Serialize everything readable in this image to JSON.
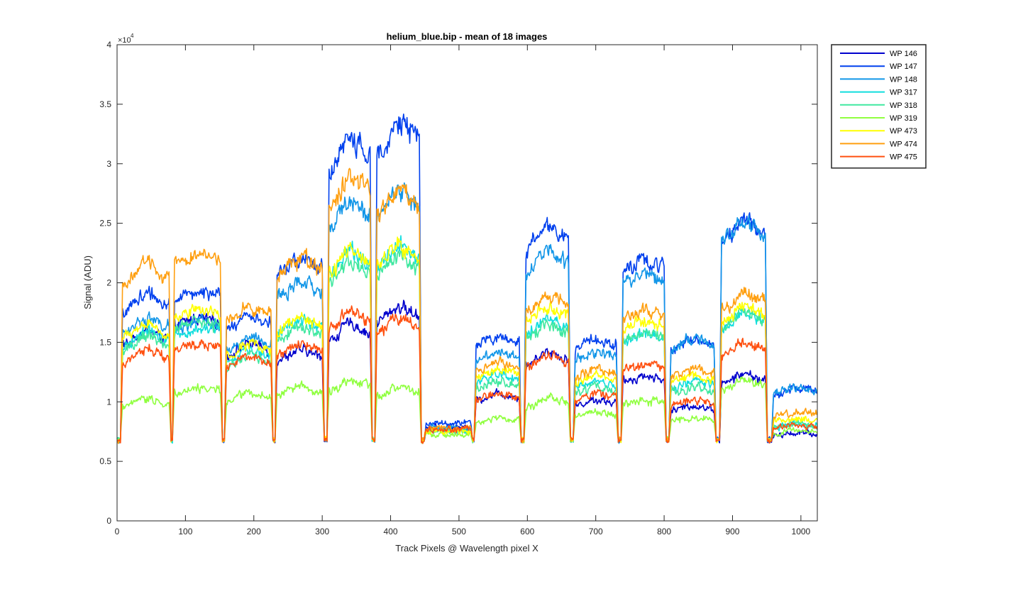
{
  "chart_data": {
    "type": "line",
    "title": "helium_blue.bip - mean of 18 images",
    "xlabel": "Track Pixels @ Wavelength pixel X",
    "ylabel": "Signal (ADU)",
    "y_exponent_label": "×10",
    "y_exponent_power": "4",
    "xlim": [
      0,
      1024
    ],
    "ylim": [
      0,
      40000
    ],
    "x_ticks": [
      0,
      100,
      200,
      300,
      400,
      500,
      600,
      700,
      800,
      900,
      1000
    ],
    "x_tick_labels": [
      "0",
      "100",
      "200",
      "300",
      "400",
      "500",
      "600",
      "700",
      "800",
      "900",
      "1000"
    ],
    "y_ticks": [
      0,
      5000,
      10000,
      15000,
      20000,
      25000,
      30000,
      35000,
      40000
    ],
    "y_tick_labels": [
      "0",
      "0.5",
      "1",
      "1.5",
      "2",
      "2.5",
      "3",
      "3.5",
      "4"
    ],
    "grid": false,
    "legend_position": "outside-right-top",
    "baseline": 6800,
    "segments": [
      {
        "start": 8,
        "end": 76,
        "shape": 0.35
      },
      {
        "start": 84,
        "end": 151,
        "shape": 0.15
      },
      {
        "start": 160,
        "end": 225,
        "shape": 0.3
      },
      {
        "start": 234,
        "end": 300,
        "shape": 0.25
      },
      {
        "start": 310,
        "end": 370,
        "shape": 0.4
      },
      {
        "start": 380,
        "end": 442,
        "shape": 0.3
      },
      {
        "start": 452,
        "end": 517,
        "shape": 0.0
      },
      {
        "start": 525,
        "end": 588,
        "shape": 0.2
      },
      {
        "start": 598,
        "end": 660,
        "shape": 0.35
      },
      {
        "start": 670,
        "end": 730,
        "shape": 0.2
      },
      {
        "start": 740,
        "end": 800,
        "shape": 0.15
      },
      {
        "start": 810,
        "end": 873,
        "shape": 0.2
      },
      {
        "start": 884,
        "end": 948,
        "shape": 0.3
      },
      {
        "start": 960,
        "end": 1024,
        "shape": 0.15
      }
    ],
    "series": [
      {
        "name": "WP 146",
        "color": "#0000cd",
        "levels": [
          15500,
          16800,
          14500,
          14000,
          16000,
          17500,
          7800,
          10500,
          13800,
          10000,
          12000,
          9500,
          12000,
          7300
        ]
      },
      {
        "name": "WP 147",
        "color": "#0040ee",
        "levels": [
          18500,
          19000,
          16800,
          21500,
          31000,
          32500,
          8200,
          15200,
          24000,
          15000,
          21500,
          15000,
          24500,
          11000
        ]
      },
      {
        "name": "WP 148",
        "color": "#1296e8",
        "levels": [
          16500,
          16500,
          15000,
          19500,
          26000,
          27000,
          7800,
          14000,
          22000,
          14000,
          20500,
          15000,
          24500,
          11000
        ]
      },
      {
        "name": "WP 317",
        "color": "#10dede",
        "levels": [
          15500,
          16000,
          14000,
          16500,
          22000,
          22500,
          7600,
          12000,
          16500,
          11500,
          15500,
          11500,
          17000,
          8000
        ]
      },
      {
        "name": "WP 318",
        "color": "#40e8a0",
        "levels": [
          15000,
          16500,
          13500,
          16000,
          21000,
          21500,
          7500,
          11500,
          16000,
          11000,
          15500,
          11000,
          17000,
          8000
        ]
      },
      {
        "name": "WP 319",
        "color": "#90ff40",
        "levels": [
          10000,
          11000,
          10500,
          11000,
          11500,
          11000,
          7200,
          8500,
          10000,
          9000,
          10000,
          8500,
          11500,
          7500
        ]
      },
      {
        "name": "WP 473",
        "color": "#ffff00",
        "levels": [
          16000,
          17500,
          14500,
          16500,
          22000,
          22500,
          7500,
          12500,
          17500,
          12000,
          16500,
          12000,
          17500,
          8500
        ]
      },
      {
        "name": "WP 474",
        "color": "#ff9f10",
        "levels": [
          21000,
          22000,
          17500,
          21500,
          28000,
          27000,
          7800,
          13000,
          18500,
          12500,
          17500,
          12500,
          18500,
          9000
        ]
      },
      {
        "name": "WP 475",
        "color": "#ff5010",
        "levels": [
          14000,
          14800,
          13500,
          14500,
          17000,
          16500,
          7700,
          10500,
          13500,
          10500,
          13000,
          10000,
          14500,
          8000
        ]
      }
    ]
  }
}
